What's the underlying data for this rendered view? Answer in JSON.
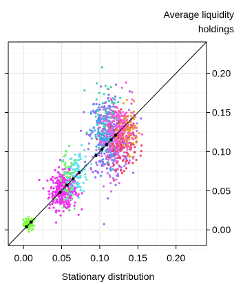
{
  "chart_data": {
    "type": "scatter",
    "title": "",
    "xlabel": "Stationary distribution",
    "ylabel": [
      "Average liquidity",
      "holdings"
    ],
    "xlim": [
      -0.02,
      0.24
    ],
    "ylim": [
      -0.02,
      0.24
    ],
    "x_ticks": [
      0.0,
      0.05,
      0.1,
      0.15,
      0.2
    ],
    "x_tick_labels": [
      "0.00",
      "0.05",
      "0.10",
      "0.15",
      "0.20"
    ],
    "y_ticks": [
      0.0,
      0.05,
      0.1,
      0.15,
      0.2
    ],
    "y_tick_labels": [
      "0.00",
      "0.05",
      "0.10",
      "0.15",
      "0.20"
    ],
    "y_axis_side": "right",
    "grid": true,
    "legend": "none",
    "reference_line": {
      "type": "identity",
      "color": "#000000"
    },
    "highlight_points": {
      "color": "#000000",
      "x": [
        0.004,
        0.01,
        0.048,
        0.057,
        0.065,
        0.073,
        0.095,
        0.103,
        0.109,
        0.115,
        0.121
      ],
      "y": [
        0.004,
        0.01,
        0.048,
        0.057,
        0.065,
        0.073,
        0.095,
        0.103,
        0.109,
        0.115,
        0.121
      ]
    },
    "clusters": [
      {
        "color": "#7cfc3a",
        "x_center": 0.008,
        "y_center": 0.008,
        "x_spread": 0.004,
        "y_spread": 0.004,
        "count": 60
      },
      {
        "color": "#ee32ee",
        "x_center": 0.052,
        "y_center": 0.05,
        "x_spread": 0.009,
        "y_spread": 0.012,
        "count": 320
      },
      {
        "color": "#6cf06c",
        "x_center": 0.058,
        "y_center": 0.058,
        "x_spread": 0.006,
        "y_spread": 0.02,
        "count": 60
      },
      {
        "color": "#5ee0f0",
        "x_center": 0.072,
        "y_center": 0.075,
        "x_spread": 0.007,
        "y_spread": 0.014,
        "count": 80
      },
      {
        "color": "#9b6cf0",
        "x_center": 0.113,
        "y_center": 0.12,
        "x_spread": 0.013,
        "y_spread": 0.028,
        "count": 240
      },
      {
        "color": "#4aa0f0",
        "x_center": 0.105,
        "y_center": 0.118,
        "x_spread": 0.008,
        "y_spread": 0.022,
        "count": 140
      },
      {
        "color": "#cd6cf0",
        "x_center": 0.12,
        "y_center": 0.112,
        "x_spread": 0.011,
        "y_spread": 0.02,
        "count": 170
      },
      {
        "color": "#f04060",
        "x_center": 0.13,
        "y_center": 0.113,
        "x_spread": 0.009,
        "y_spread": 0.017,
        "count": 140
      },
      {
        "color": "#e8a030",
        "x_center": 0.138,
        "y_center": 0.128,
        "x_spread": 0.006,
        "y_spread": 0.014,
        "count": 70
      },
      {
        "color": "#ff5ad0",
        "x_center": 0.126,
        "y_center": 0.13,
        "x_spread": 0.01,
        "y_spread": 0.02,
        "count": 100
      },
      {
        "color": "#3cd6a8",
        "x_center": 0.107,
        "y_center": 0.15,
        "x_spread": 0.009,
        "y_spread": 0.022,
        "count": 45
      }
    ]
  }
}
